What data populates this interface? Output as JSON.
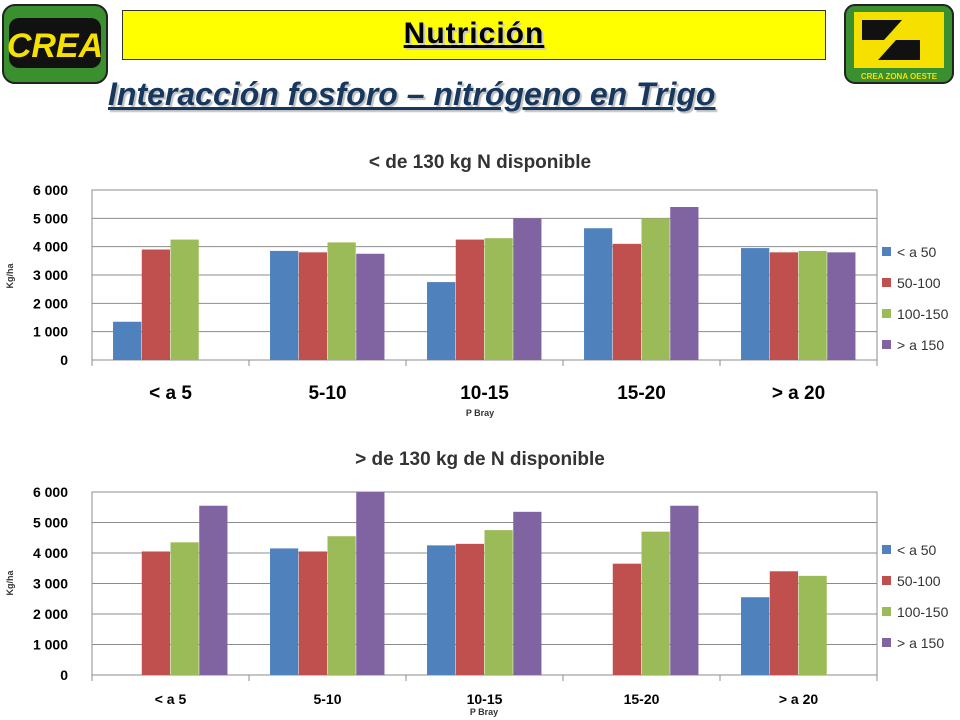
{
  "header": {
    "logo_left_text": "CREA",
    "logo_right_text": "CREA ZONA OESTE",
    "banner_title": "Nutrición",
    "subtitle": "Interacción fosforo – nitrógeno en Trigo"
  },
  "colors": {
    "banner": "#ffff00",
    "logo_green": "#3a8f2e",
    "logo_yellow": "#f5e000",
    "series": [
      "#4f81bd",
      "#c0504d",
      "#9bbb59",
      "#8064a2"
    ]
  },
  "chart_data": [
    {
      "type": "bar",
      "title": "< de 130 kg N disponible",
      "xlabel": "P Bray",
      "ylabel": "Kg/ha",
      "ylim": [
        0,
        6000
      ],
      "yticks": [
        "0",
        "1 000",
        "2 000",
        "3 000",
        "4 000",
        "5 000",
        "6 000"
      ],
      "categories": [
        "< a 5",
        "5-10",
        "10-15",
        "15-20",
        "> a 20"
      ],
      "legend_position": "right",
      "series": [
        {
          "name": "< a 50",
          "values": [
            1350,
            3850,
            2750,
            4650,
            3950
          ]
        },
        {
          "name": "50-100",
          "values": [
            3900,
            3800,
            4250,
            4100,
            3800
          ]
        },
        {
          "name": "100-150",
          "values": [
            4250,
            4150,
            4300,
            5000,
            3850
          ]
        },
        {
          "name": "> a 150",
          "values": [
            null,
            3750,
            5000,
            5400,
            3800
          ]
        }
      ]
    },
    {
      "type": "bar",
      "title": "> de 130 kg de N disponible",
      "xlabel": "P Bray",
      "ylabel": "Kg/ha",
      "ylim": [
        0,
        6000
      ],
      "yticks": [
        "0",
        "1 000",
        "2 000",
        "3 000",
        "4 000",
        "5 000",
        "6 000"
      ],
      "categories": [
        "< a 5",
        "5-10",
        "10-15",
        "15-20",
        "> a 20"
      ],
      "legend_position": "right",
      "series": [
        {
          "name": "< a 50",
          "values": [
            null,
            4150,
            4250,
            null,
            2550
          ]
        },
        {
          "name": "50-100",
          "values": [
            4050,
            4050,
            4300,
            3650,
            3400
          ]
        },
        {
          "name": "100-150",
          "values": [
            4350,
            4550,
            4750,
            4700,
            3250
          ]
        },
        {
          "name": "> a 150",
          "values": [
            5550,
            6000,
            5350,
            5550,
            null
          ]
        }
      ]
    }
  ]
}
